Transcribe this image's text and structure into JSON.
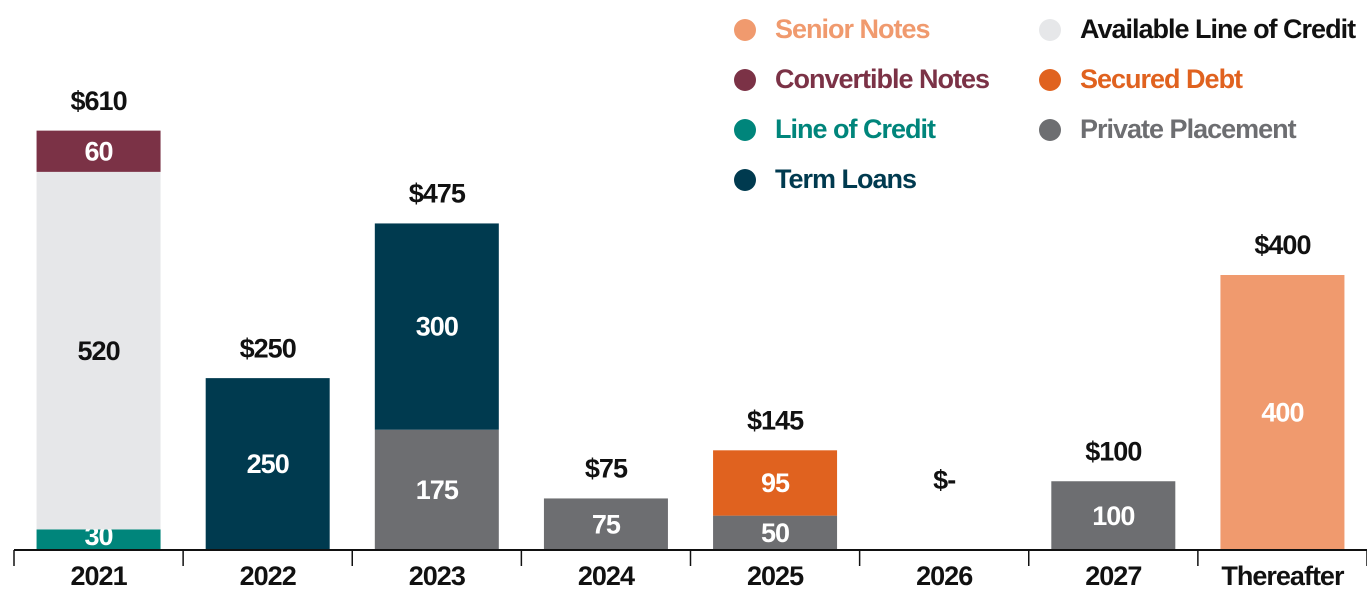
{
  "chart_data": {
    "type": "stacked_bar",
    "categories": [
      "2021",
      "2022",
      "2023",
      "2024",
      "2025",
      "2026",
      "2027",
      "Thereafter"
    ],
    "series": [
      {
        "name": "Senior Notes",
        "color": "#f09a6e",
        "values": [
          null,
          null,
          null,
          null,
          null,
          null,
          null,
          400
        ]
      },
      {
        "name": "Convertible Notes",
        "color": "#7b3246",
        "values": [
          60,
          null,
          null,
          null,
          null,
          null,
          null,
          null
        ]
      },
      {
        "name": "Line of Credit",
        "color": "#00857b",
        "values": [
          30,
          null,
          null,
          null,
          null,
          null,
          null,
          null
        ]
      },
      {
        "name": "Term Loans",
        "color": "#003a4f",
        "values": [
          null,
          250,
          300,
          null,
          null,
          null,
          null,
          null
        ]
      },
      {
        "name": "Available Line of Credit",
        "color": "#e6e7e9",
        "values": [
          520,
          null,
          null,
          null,
          null,
          null,
          null,
          null
        ]
      },
      {
        "name": "Secured Debt",
        "color": "#e0621f",
        "values": [
          null,
          null,
          null,
          null,
          95,
          null,
          null,
          null
        ]
      },
      {
        "name": "Private Placement",
        "color": "#6d6e71",
        "values": [
          null,
          null,
          175,
          75,
          50,
          null,
          100,
          null
        ]
      }
    ],
    "total_labels": [
      "$610",
      "$250",
      "$475",
      "$75",
      "$145",
      "$-",
      "$100",
      "$400"
    ],
    "ylim": [
      0,
      800
    ]
  }
}
